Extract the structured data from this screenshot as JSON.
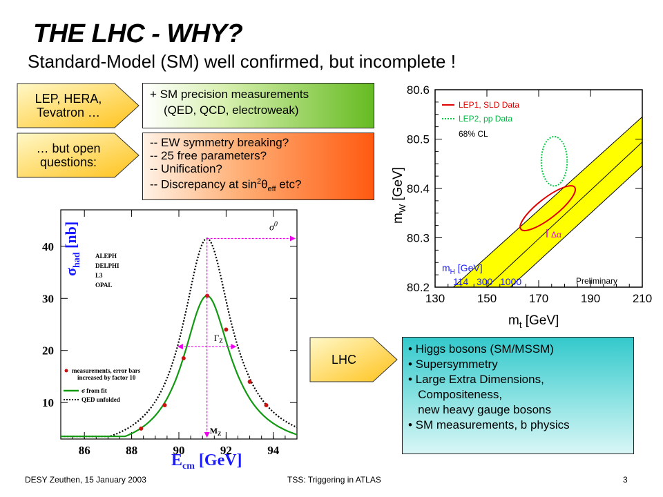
{
  "header": {
    "title": "THE LHC - WHY?",
    "subtitle": "Standard-Model  (SM) well confirmed, but incomplete !"
  },
  "arrows": {
    "lep_hera": [
      "LEP, HERA,",
      "Tevatron …"
    ],
    "open_questions": [
      "… but open",
      "questions:"
    ],
    "lhc": "LHC"
  },
  "precision_box": {
    "line1": "+ SM precision measurements",
    "line2": "(QED, QCD, electroweak)"
  },
  "questions_box": {
    "items": [
      "-- EW symmetry breaking?",
      "-- 25 free parameters?",
      "-- Unification?"
    ],
    "discrepancy_prefix": "-- Discrepancy at sin",
    "discrepancy_sup": "2",
    "discrepancy_theta": "θ",
    "discrepancy_sub": "eff",
    "discrepancy_suffix": " etc?"
  },
  "lhc_box": {
    "items": [
      "• Higgs bosons (SM/MSSM)",
      "• Supersymmetry",
      "• Large Extra Dimensions,",
      "   Compositeness,",
      "   new heavy gauge bosons",
      "• SM measurements, b physics"
    ]
  },
  "footer": {
    "left": "DESY Zeuthen, 15 January 2003",
    "center": "TSS: Triggering in ATLAS",
    "page": "3"
  },
  "colors": {
    "yellow_band": "#ffff00",
    "lep1": "#e00000",
    "lep2": "#00cc44",
    "arrow_fill": "#ffd84a",
    "blue_label": "#1a1aff",
    "fit_curve": "#119911",
    "magenta": "#ee00ee",
    "point": "#cc1111"
  },
  "chart_data": [
    {
      "type": "line",
      "xlabel_main": "E",
      "xlabel_sub": "cm",
      "xlabel_unit": " [GeV]",
      "ylabel_main": "σ",
      "ylabel_sub": "had",
      "ylabel_unit": " [nb]",
      "xlim": [
        85,
        95
      ],
      "ylim": [
        3,
        47
      ],
      "xticks": [
        86,
        88,
        90,
        92,
        94
      ],
      "yticks": [
        10,
        20,
        30,
        40
      ],
      "experiments": [
        "ALEPH",
        "DELPHI",
        "L3",
        "OPAL"
      ],
      "legend": [
        {
          "text": "measurements, error bars",
          "text2": "increased by factor 10"
        },
        {
          "text": "σ from fit"
        },
        {
          "text": "QED unfolded"
        }
      ],
      "annotations": {
        "sigma0": "σ",
        "sigma0_sup": "0",
        "gammaz": "Γ",
        "gammaz_sub": "Z",
        "mz": "M",
        "mz_sub": "Z"
      },
      "measurements": {
        "x": [
          88.4,
          89.4,
          90.2,
          91.2,
          92.0,
          93.0,
          93.7
        ],
        "y": [
          5.0,
          9.5,
          18.5,
          30.5,
          24.0,
          14.0,
          9.5
        ]
      },
      "fit": {
        "peak_x": 91.19,
        "peak_y": 30.5,
        "width": 2.5
      },
      "qed_unfolded": {
        "peak_x": 91.19,
        "peak_y": 41.5,
        "width": 2.5
      }
    },
    {
      "type": "area",
      "xlabel_main": "m",
      "xlabel_sub": "t",
      "xlabel_unit": "  [GeV]",
      "ylabel_main": "m",
      "ylabel_sub": "W",
      "ylabel_unit": "  [GeV]",
      "xlim": [
        130,
        210
      ],
      "ylim": [
        80.2,
        80.6
      ],
      "xticks": [
        130,
        150,
        170,
        190,
        210
      ],
      "yticks": [
        80.2,
        80.3,
        80.4,
        80.5,
        80.6
      ],
      "legend": [
        {
          "text": "LEP1, SLD Data",
          "style": "solid"
        },
        {
          "text": "LEP2, pp Data",
          "style": "dotted"
        },
        {
          "text": "68% CL",
          "style": "none"
        }
      ],
      "higgs_label_main": "m",
      "higgs_label_sub": "H",
      "higgs_label_unit": " [GeV]",
      "higgs_masses": [
        "114",
        "300",
        "1000"
      ],
      "preliminary": "Preliminary",
      "delta_alpha": "Δα",
      "band": {
        "upper": [
          [
            137,
            80.2
          ],
          [
            210,
            80.545
          ]
        ],
        "lower": [
          [
            159,
            80.2
          ],
          [
            210,
            80.446
          ]
        ],
        "mid": [
          [
            150,
            80.2
          ],
          [
            210,
            80.494
          ]
        ]
      },
      "lep1_ellipse": {
        "cx": 173.5,
        "cy": 80.36,
        "rx_gev": 15.5,
        "ry_gev": 0.025,
        "rotate": -38
      },
      "lep2_ellipse": {
        "cx": 176,
        "cy": 80.455,
        "rx_gev": 5.0,
        "ry_gev": 0.05,
        "rotate": 0
      }
    }
  ]
}
